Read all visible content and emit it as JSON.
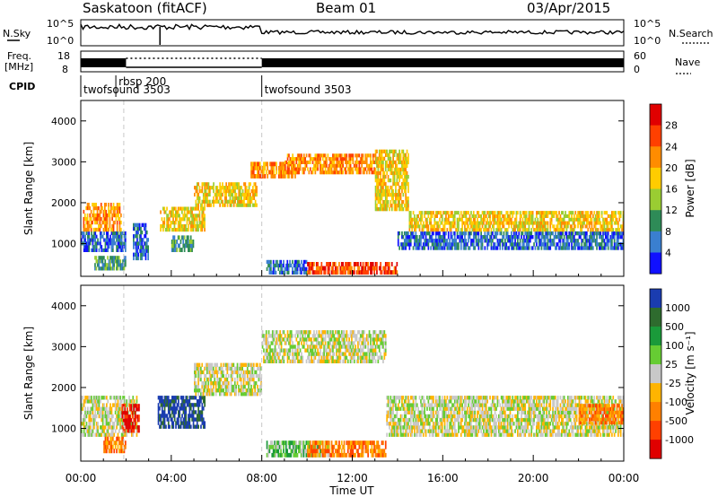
{
  "header": {
    "station": "Saskatoon (fitACF)",
    "beam": "Beam 01",
    "date": "03/Apr/2015"
  },
  "top_panel": {
    "left_label": "N.Sky",
    "right_label": "N.Search",
    "left_ticks": [
      "10^5",
      "10^0"
    ],
    "right_ticks": [
      "10^5",
      "10^0"
    ]
  },
  "freq_panel": {
    "left_label_1": "Freq.",
    "left_label_2": "[MHz]",
    "left_ticks": [
      "18",
      "8"
    ],
    "right_label": "Nave",
    "right_ticks": [
      "60",
      "0"
    ]
  },
  "cpid": {
    "label": "CPID",
    "segments": [
      {
        "name": "twofsound 3503",
        "start_hour": 0.0,
        "end_hour": 1.55
      },
      {
        "name": "rbsp 200",
        "start_hour": 1.55,
        "end_hour": 8.0
      },
      {
        "name": "twofsound 3503",
        "start_hour": 8.0,
        "end_hour": 24.0
      }
    ],
    "extra_label": "twofsound 3503"
  },
  "chart_data": [
    {
      "type": "heatmap",
      "name": "power",
      "ylabel": "Slant Range [km]",
      "ylim": [
        200,
        4500
      ],
      "yticks": [
        1000,
        2000,
        3000,
        4000
      ],
      "xlim": [
        0,
        24
      ],
      "colorbar": {
        "label": "Power [dB]",
        "ticks": [
          "28",
          "24",
          "20",
          "16",
          "12",
          "8",
          "4"
        ],
        "colors": [
          "#e00000",
          "#ff4000",
          "#ff8c00",
          "#ffcc00",
          "#9acd32",
          "#2e8b57",
          "#3a7fd0",
          "#1010ff"
        ]
      },
      "bands": [
        {
          "t0": 0.0,
          "t1": 2.0,
          "r0": 800,
          "r1": 1300,
          "level": 6
        },
        {
          "t0": 0.1,
          "t1": 1.8,
          "r0": 1300,
          "r1": 2000,
          "level": 2
        },
        {
          "t0": 0.6,
          "t1": 2.0,
          "r0": 350,
          "r1": 700,
          "level": 5
        },
        {
          "t0": 2.3,
          "t1": 3.0,
          "r0": 600,
          "r1": 1500,
          "level": 6
        },
        {
          "t0": 3.5,
          "t1": 5.5,
          "r0": 1300,
          "r1": 1900,
          "level": 3
        },
        {
          "t0": 4.0,
          "t1": 5.0,
          "r0": 800,
          "r1": 1200,
          "level": 5
        },
        {
          "t0": 5.0,
          "t1": 7.8,
          "r0": 1900,
          "r1": 2500,
          "level": 3
        },
        {
          "t0": 7.5,
          "t1": 9.5,
          "r0": 2600,
          "r1": 3000,
          "level": 2
        },
        {
          "t0": 8.2,
          "t1": 10.0,
          "r0": 250,
          "r1": 600,
          "level": 6
        },
        {
          "t0": 9.0,
          "t1": 13.0,
          "r0": 2700,
          "r1": 3200,
          "level": 2
        },
        {
          "t0": 10.0,
          "t1": 14.0,
          "r0": 250,
          "r1": 550,
          "level": 1
        },
        {
          "t0": 13.0,
          "t1": 14.5,
          "r0": 1800,
          "r1": 3300,
          "level": 3
        },
        {
          "t0": 14.0,
          "t1": 24.0,
          "r0": 850,
          "r1": 1300,
          "level": 6
        },
        {
          "t0": 14.5,
          "t1": 24.0,
          "r0": 1300,
          "r1": 1800,
          "level": 3
        }
      ]
    },
    {
      "type": "heatmap",
      "name": "velocity",
      "ylabel": "Slant Range [km]",
      "xlabel": "Time UT",
      "ylim": [
        200,
        4500
      ],
      "yticks": [
        1000,
        2000,
        3000,
        4000
      ],
      "xlim": [
        0,
        24
      ],
      "xticks": [
        "00:00",
        "04:00",
        "08:00",
        "12:00",
        "16:00",
        "20:00",
        "00:00"
      ],
      "colorbar": {
        "label": "Velocity [m s⁻¹]",
        "ticks": [
          "1000",
          "500",
          "100",
          "25",
          "-25",
          "-100",
          "-500",
          "-1000"
        ],
        "colors": [
          "#1a3cb0",
          "#2e6b2e",
          "#1a9a3a",
          "#66cc33",
          "#c8c8c8",
          "#ffb400",
          "#ff8000",
          "#ff4000",
          "#e00000"
        ]
      },
      "bands": [
        {
          "t0": 0.0,
          "t1": 2.5,
          "r0": 800,
          "r1": 1800,
          "level": 4
        },
        {
          "t0": 1.8,
          "t1": 2.6,
          "r0": 900,
          "r1": 1600,
          "level": 8
        },
        {
          "t0": 1.0,
          "t1": 2.0,
          "r0": 400,
          "r1": 800,
          "level": 6
        },
        {
          "t0": 3.4,
          "t1": 5.5,
          "r0": 1000,
          "r1": 1800,
          "level": 0
        },
        {
          "t0": 5.0,
          "t1": 8.0,
          "r0": 1800,
          "r1": 2600,
          "level": 4
        },
        {
          "t0": 8.0,
          "t1": 13.5,
          "r0": 2600,
          "r1": 3400,
          "level": 4
        },
        {
          "t0": 8.2,
          "t1": 11.0,
          "r0": 300,
          "r1": 700,
          "level": 3
        },
        {
          "t0": 10.0,
          "t1": 13.5,
          "r0": 300,
          "r1": 700,
          "level": 6
        },
        {
          "t0": 13.5,
          "t1": 24.0,
          "r0": 800,
          "r1": 1800,
          "level": 4
        },
        {
          "t0": 22.0,
          "t1": 24.0,
          "r0": 1100,
          "r1": 1600,
          "level": 6
        }
      ]
    }
  ]
}
